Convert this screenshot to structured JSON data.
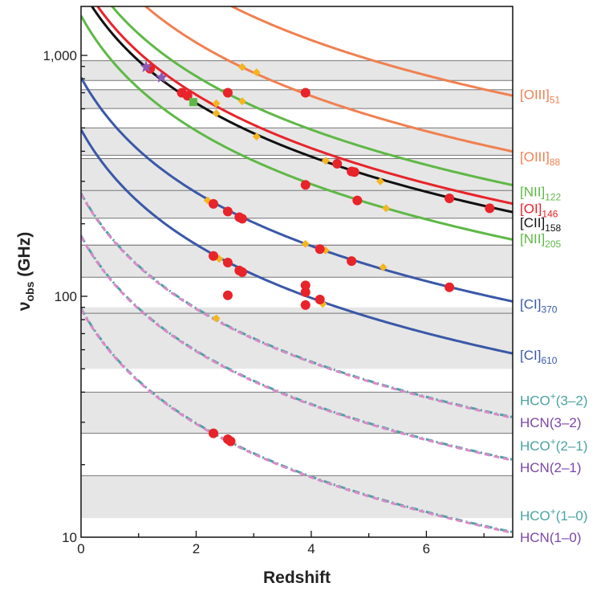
{
  "chart_data": {
    "type": "line",
    "xlabel": "Redshift",
    "ylabel": "ν",
    "ylabel_sub": "obs",
    "ylabel_unit": " (GHz)",
    "xlim": [
      0,
      7.5
    ],
    "ylim": [
      10,
      1700
    ],
    "yscale": "log",
    "x_ticks": [
      {
        "value": 0,
        "label": "0"
      },
      {
        "value": 2,
        "label": "2"
      },
      {
        "value": 4,
        "label": "4"
      },
      {
        "value": 6,
        "label": "6"
      }
    ],
    "y_ticks": [
      {
        "value": 10,
        "label": "10"
      },
      {
        "value": 100,
        "label": "100"
      },
      {
        "value": 1000,
        "label": "1,000"
      }
    ],
    "atmospheric_bands_ghz": [
      [
        12,
        18
      ],
      [
        27,
        40
      ],
      [
        50,
        90
      ],
      [
        120,
        165
      ],
      [
        210,
        275
      ],
      [
        275,
        373
      ],
      [
        385,
        500
      ],
      [
        602,
        720
      ],
      [
        787,
        950
      ]
    ],
    "band_lines_ghz": [
      18,
      27,
      40,
      85,
      120,
      163,
      211,
      275,
      373,
      385,
      500,
      602,
      720,
      787,
      950
    ],
    "series": [
      {
        "name": "[OIII]",
        "sub": "51",
        "rest_ghz": 5785.9,
        "color": "#f08050",
        "style": "solid"
      },
      {
        "name": "[OIII]",
        "sub": "88",
        "rest_ghz": 3393.0,
        "color": "#f08050",
        "style": "solid"
      },
      {
        "name": "[NII]",
        "sub": "122",
        "rest_ghz": 2459.4,
        "color": "#5fb846",
        "style": "solid"
      },
      {
        "name": "[OI]",
        "sub": "146",
        "rest_ghz": 2060.1,
        "color": "#e8232a",
        "style": "solid"
      },
      {
        "name": "[CII]",
        "sub": "158",
        "rest_ghz": 1900.5,
        "color": "#111111",
        "style": "solid"
      },
      {
        "name": "[NII]",
        "sub": "205",
        "rest_ghz": 1461.1,
        "color": "#5fb846",
        "style": "solid"
      },
      {
        "name": "[CI]",
        "sub": "370",
        "rest_ghz": 809.3,
        "color": "#3a58a8",
        "style": "solid"
      },
      {
        "name": "[CI]",
        "sub": "610",
        "rest_ghz": 492.2,
        "color": "#3a58a8",
        "style": "solid"
      },
      {
        "name": "HCO+(3–2)",
        "rest_ghz": 267.6,
        "color": "#4aa3a3",
        "style": "dashdot"
      },
      {
        "name": "HCN(3–2)",
        "rest_ghz": 265.9,
        "color": "#d98ac8",
        "style": "dash"
      },
      {
        "name": "HCO+(2–1)",
        "rest_ghz": 178.4,
        "color": "#4aa3a3",
        "style": "dashdot"
      },
      {
        "name": "HCN(2–1)",
        "rest_ghz": 177.3,
        "color": "#d98ac8",
        "style": "dash"
      },
      {
        "name": "HCO+(1–0)",
        "rest_ghz": 89.2,
        "color": "#4aa3a3",
        "style": "dashdot"
      },
      {
        "name": "HCN(1–0)",
        "rest_ghz": 88.6,
        "color": "#d98ac8",
        "style": "dash"
      }
    ],
    "labels": [
      {
        "text": "[OIII]",
        "sub": "51",
        "color": "#f08050",
        "freq": 690
      },
      {
        "text": "[OIII]",
        "sub": "88",
        "color": "#f08050",
        "freq": 380
      },
      {
        "text": "[NII]",
        "sub": "122",
        "color": "#5fb846",
        "freq": 272
      },
      {
        "text": "[OI]",
        "sub": "146",
        "color": "#e8232a",
        "freq": 232
      },
      {
        "text": "[CII]",
        "sub": "158",
        "color": "#111111",
        "freq": 203
      },
      {
        "text": "[NII]",
        "sub": "205",
        "color": "#5fb846",
        "freq": 174
      },
      {
        "text": "[CI]",
        "sub": "370",
        "color": "#3a58a8",
        "freq": 93
      },
      {
        "text": "[CI]",
        "sub": "610",
        "color": "#3a58a8",
        "freq": 57
      },
      {
        "text": "HCO",
        "sup": "+",
        "after": "(3–2)",
        "color": "#4aa3a3",
        "freq": 37
      },
      {
        "text": "HCN(3–2)",
        "color": "#7b47a8",
        "freq": 30
      },
      {
        "text": "HCO",
        "sup": "+",
        "after": "(2–1)",
        "color": "#4aa3a3",
        "freq": 24
      },
      {
        "text": "HCN(2–1)",
        "color": "#7b47a8",
        "freq": 19.5
      },
      {
        "text": "HCO",
        "sup": "+",
        "after": "(1–0)",
        "color": "#4aa3a3",
        "freq": 12.3
      },
      {
        "text": "HCN(1–0)",
        "color": "#7b47a8",
        "freq": 10
      }
    ],
    "red_circles": [
      [
        1.2,
        880
      ],
      [
        1.75,
        700
      ],
      [
        1.85,
        680
      ],
      [
        2.55,
        700
      ],
      [
        3.9,
        700
      ],
      [
        4.45,
        355
      ],
      [
        4.7,
        330
      ],
      [
        4.75,
        328
      ],
      [
        6.4,
        255
      ],
      [
        7.1,
        232
      ],
      [
        3.9,
        290
      ],
      [
        4.8,
        250
      ],
      [
        2.3,
        242
      ],
      [
        2.55,
        225
      ],
      [
        2.75,
        213
      ],
      [
        2.8,
        210
      ],
      [
        4.15,
        157
      ],
      [
        4.7,
        140
      ],
      [
        6.4,
        109
      ],
      [
        2.3,
        147
      ],
      [
        2.55,
        138
      ],
      [
        2.75,
        128
      ],
      [
        2.8,
        126
      ],
      [
        2.55,
        101
      ],
      [
        3.9,
        111
      ],
      [
        3.9,
        104
      ],
      [
        3.9,
        92
      ],
      [
        4.15,
        97
      ],
      [
        2.3,
        27
      ],
      [
        2.55,
        25.5
      ],
      [
        2.6,
        25
      ]
    ],
    "orange_diamonds": [
      [
        2.8,
        895
      ],
      [
        3.05,
        850
      ],
      [
        2.35,
        632
      ],
      [
        2.8,
        645
      ],
      [
        2.35,
        575
      ],
      [
        3.05,
        460
      ],
      [
        4.25,
        365
      ],
      [
        5.2,
        300
      ],
      [
        5.3,
        232
      ],
      [
        2.2,
        250
      ],
      [
        3.9,
        165
      ],
      [
        4.25,
        155
      ],
      [
        5.25,
        132
      ],
      [
        2.4,
        143
      ],
      [
        4.2,
        93
      ],
      [
        2.35,
        81
      ]
    ],
    "green_squares": [
      [
        1.95,
        640
      ]
    ],
    "purple_stars": [
      [
        1.13,
        895
      ],
      [
        1.4,
        810
      ]
    ]
  }
}
